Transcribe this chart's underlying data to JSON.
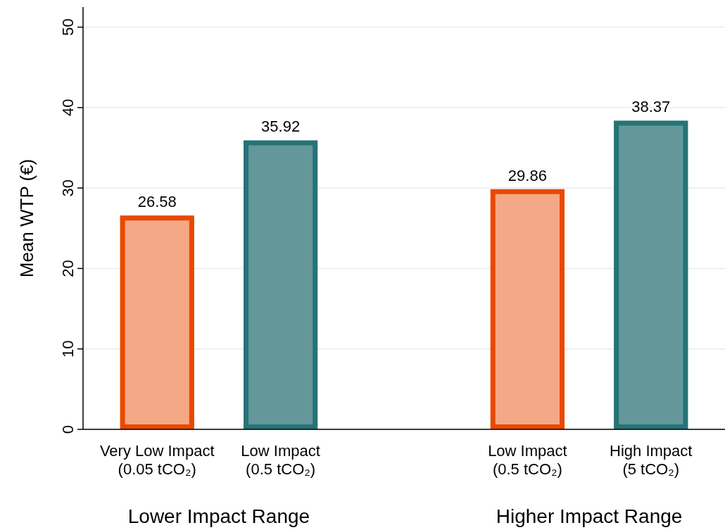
{
  "chart_data": {
    "type": "bar",
    "ylabel": "Mean WTP (€)",
    "categories": [
      "Very Low Impact\n(0.05 tCO₂)",
      "Low Impact\n(0.5 tCO₂)",
      null,
      "Low Impact\n(0.5 tCO₂)",
      "High Impact\n(5 tCO₂)"
    ],
    "values": [
      26.58,
      35.92,
      null,
      29.86,
      38.37
    ],
    "colors": [
      "#f4a886",
      "#64979a",
      null,
      "#f4a886",
      "#64979a"
    ],
    "ylim": [
      0,
      52.5
    ],
    "yticks": [
      0,
      10,
      20,
      30,
      40,
      50
    ],
    "grid": "y",
    "data_labels": true,
    "annotations": [
      "Lower Impact Range",
      "Higher Impact Range"
    ]
  }
}
